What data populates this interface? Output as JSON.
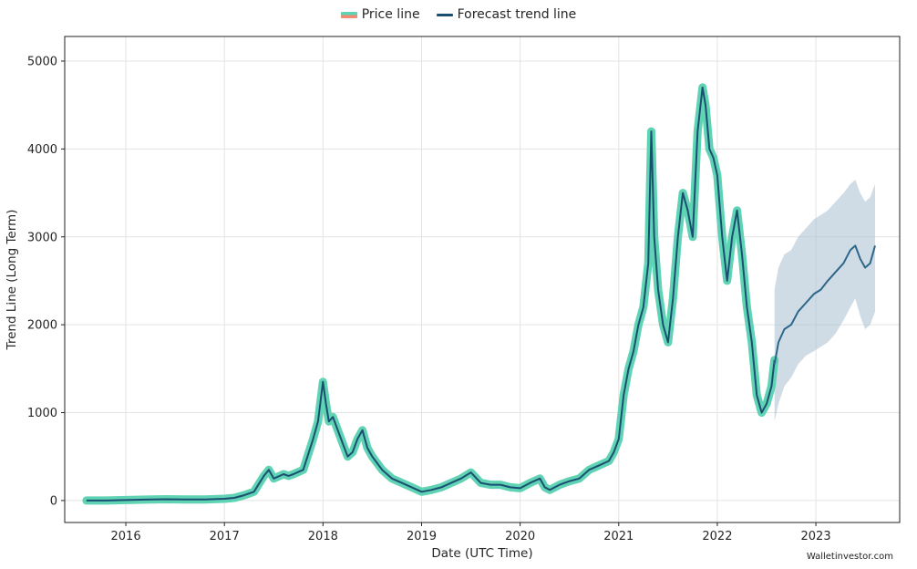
{
  "chart_data": {
    "type": "line",
    "xlabel": "Date (UTC Time)",
    "ylabel": "Trend Line (Long Term)",
    "xlim": [
      2015.38,
      2023.85
    ],
    "ylim": [
      -250,
      5280
    ],
    "x_ticks": [
      2016,
      2017,
      2018,
      2019,
      2020,
      2021,
      2022,
      2023
    ],
    "y_ticks": [
      0,
      1000,
      2000,
      3000,
      4000,
      5000
    ],
    "grid": true,
    "legend_position": "top-center",
    "series": [
      {
        "name": "Price line",
        "color": "#5fd3b3",
        "alt_color": "#f08a70",
        "x": [
          2015.6,
          2015.8,
          2016.0,
          2016.2,
          2016.4,
          2016.6,
          2016.8,
          2017.0,
          2017.1,
          2017.2,
          2017.3,
          2017.4,
          2017.45,
          2017.5,
          2017.6,
          2017.65,
          2017.7,
          2017.8,
          2017.9,
          2017.95,
          2018.0,
          2018.03,
          2018.06,
          2018.1,
          2018.15,
          2018.2,
          2018.25,
          2018.3,
          2018.35,
          2018.4,
          2018.45,
          2018.5,
          2018.6,
          2018.7,
          2018.8,
          2018.9,
          2019.0,
          2019.1,
          2019.2,
          2019.3,
          2019.4,
          2019.5,
          2019.6,
          2019.7,
          2019.8,
          2019.9,
          2020.0,
          2020.1,
          2020.2,
          2020.25,
          2020.3,
          2020.4,
          2020.5,
          2020.6,
          2020.7,
          2020.8,
          2020.9,
          2020.95,
          2021.0,
          2021.05,
          2021.1,
          2021.15,
          2021.2,
          2021.25,
          2021.3,
          2021.33,
          2021.36,
          2021.4,
          2021.45,
          2021.5,
          2021.55,
          2021.6,
          2021.65,
          2021.7,
          2021.75,
          2021.8,
          2021.85,
          2021.88,
          2021.92,
          2021.96,
          2022.0,
          2022.05,
          2022.1,
          2022.15,
          2022.2,
          2022.25,
          2022.3,
          2022.35,
          2022.4,
          2022.45,
          2022.5,
          2022.55,
          2022.58
        ],
        "y": [
          0,
          0,
          5,
          10,
          15,
          12,
          12,
          20,
          30,
          60,
          100,
          280,
          350,
          250,
          300,
          280,
          300,
          350,
          700,
          900,
          1350,
          1100,
          900,
          950,
          800,
          650,
          500,
          550,
          700,
          800,
          600,
          500,
          350,
          250,
          200,
          150,
          100,
          120,
          150,
          200,
          250,
          320,
          200,
          180,
          180,
          150,
          140,
          200,
          250,
          150,
          120,
          180,
          220,
          250,
          350,
          400,
          450,
          550,
          700,
          1200,
          1500,
          1700,
          2000,
          2200,
          2700,
          4200,
          3000,
          2400,
          2000,
          1800,
          2300,
          3000,
          3500,
          3300,
          3000,
          4200,
          4700,
          4500,
          4000,
          3900,
          3700,
          3000,
          2500,
          3000,
          3300,
          2800,
          2200,
          1800,
          1200,
          1000,
          1100,
          1300,
          1600
        ]
      },
      {
        "name": "Forecast trend line",
        "color": "#1b4f72",
        "band_color": "#a8bfd0",
        "x": [
          2022.58,
          2022.62,
          2022.68,
          2022.75,
          2022.82,
          2022.9,
          2022.98,
          2023.05,
          2023.12,
          2023.2,
          2023.28,
          2023.35,
          2023.4,
          2023.45,
          2023.5,
          2023.55,
          2023.6
        ],
        "y": [
          1550,
          1800,
          1950,
          2000,
          2150,
          2250,
          2350,
          2400,
          2500,
          2600,
          2700,
          2850,
          2900,
          2750,
          2650,
          2700,
          2900
        ],
        "upper": [
          2400,
          2650,
          2800,
          2850,
          3000,
          3100,
          3200,
          3250,
          3300,
          3400,
          3500,
          3600,
          3650,
          3500,
          3400,
          3450,
          3600
        ],
        "lower": [
          900,
          1100,
          1300,
          1400,
          1550,
          1650,
          1700,
          1750,
          1800,
          1900,
          2050,
          2200,
          2300,
          2100,
          1950,
          2000,
          2150
        ]
      }
    ]
  },
  "legend": {
    "price_label": "Price line",
    "forecast_label": "Forecast trend line"
  },
  "watermark": "Walletinvestor.com"
}
